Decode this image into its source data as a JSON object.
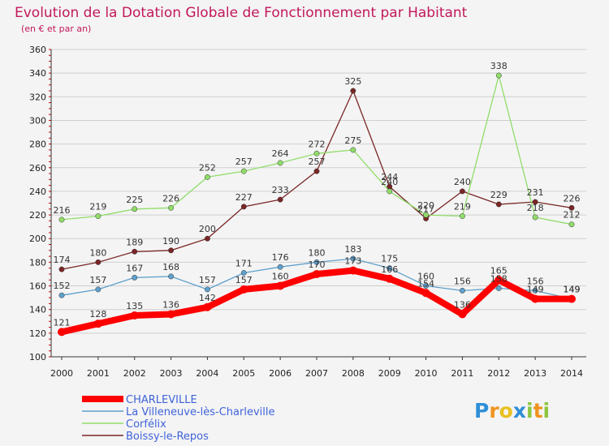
{
  "chart_data": {
    "type": "line",
    "title": "Evolution de la Dotation Globale de Fonctionnement par Habitant",
    "subtitle": "(en € et par an)",
    "x": [
      2000,
      2001,
      2002,
      2003,
      2004,
      2005,
      2006,
      2007,
      2008,
      2009,
      2010,
      2011,
      2012,
      2013,
      2014
    ],
    "xlabels": [
      "2000",
      "2001",
      "2002",
      "2003",
      "2004",
      "2005",
      "2006",
      "2007",
      "2008",
      "2009",
      "2010",
      "2011",
      "2012",
      "2013",
      "2014"
    ],
    "ylim": [
      100,
      360
    ],
    "yticks": [
      100,
      120,
      140,
      160,
      180,
      200,
      220,
      240,
      260,
      280,
      300,
      320,
      340,
      360
    ],
    "grid": "horizontal",
    "legend_placement": "bottom-left",
    "series": [
      {
        "name": "CHARLEVILLE",
        "color": "#ff0000",
        "values": [
          121,
          128,
          135,
          136,
          142,
          157,
          160,
          170,
          173,
          166,
          154,
          136,
          165,
          149,
          149
        ],
        "labels": [
          "121",
          "128",
          "135",
          "136",
          "142",
          "157",
          "160",
          "170",
          "173",
          "166",
          "154",
          "136",
          "165",
          "149",
          "149"
        ]
      },
      {
        "name": "La Villeneuve-lès-Charleville",
        "color": "#5fa0cc",
        "values": [
          152,
          157,
          167,
          168,
          157,
          171,
          176,
          180,
          183,
          175,
          160,
          156,
          158,
          156,
          149
        ],
        "labels": [
          "152",
          "157",
          "167",
          "168",
          "157",
          "171",
          "176",
          "180",
          "183",
          "175",
          "160",
          "156",
          "158",
          "156",
          "149"
        ]
      },
      {
        "name": "Corfélix",
        "color": "#90dd6a",
        "values": [
          216,
          219,
          225,
          226,
          252,
          257,
          264,
          272,
          275,
          240,
          220,
          219,
          338,
          218,
          212
        ],
        "labels": [
          "216",
          "219",
          "225",
          "226",
          "252",
          "257",
          "264",
          "272",
          "275",
          "240",
          "220",
          "219",
          "338",
          "218",
          "212"
        ]
      },
      {
        "name": "Boissy-le-Repos",
        "color": "#7a2626",
        "values": [
          174,
          180,
          189,
          190,
          200,
          227,
          233,
          257,
          325,
          244,
          217,
          240,
          229,
          231,
          226
        ],
        "labels": [
          "174",
          "180",
          "189",
          "190",
          "200",
          "227",
          "233",
          "257",
          "325",
          "244",
          "217",
          "240",
          "229",
          "231",
          "226"
        ]
      }
    ]
  },
  "logo": {
    "text": "Proxiti",
    "letters": [
      {
        "ch": "P",
        "color": "#2e8fd6"
      },
      {
        "ch": "r",
        "color": "#f0931e"
      },
      {
        "ch": "o",
        "color": "#e8c020"
      },
      {
        "ch": "x",
        "color": "#2e8fd6"
      },
      {
        "ch": "i",
        "color": "#8cc63f"
      },
      {
        "ch": "t",
        "color": "#f0931e"
      },
      {
        "ch": "i",
        "color": "#8cc63f"
      }
    ]
  }
}
